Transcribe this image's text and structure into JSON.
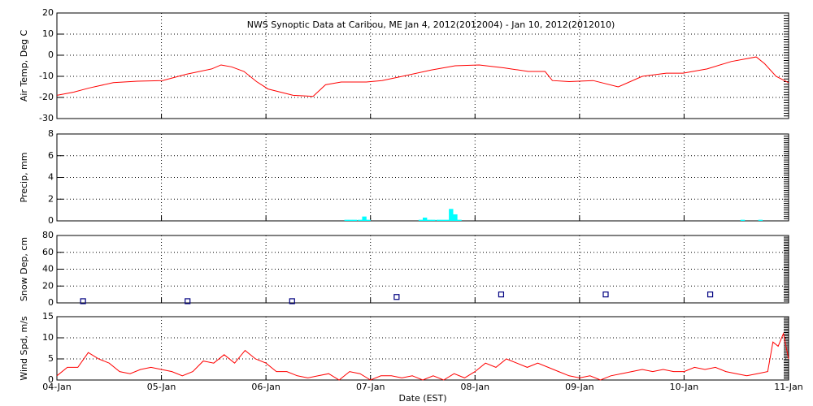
{
  "chart_data": [
    {
      "type": "line",
      "title": "NWS Synoptic Data at Caribou, ME   Jan  4, 2012(2012004) - Jan 10, 2012(2012010)",
      "y_label": "Air Temp, Deg C",
      "color": "#ff0000",
      "grid": true,
      "xlim": [
        0,
        7
      ],
      "xticks": [
        0,
        1,
        2,
        3,
        4,
        5,
        6,
        7
      ],
      "ylim": [
        -30,
        20
      ],
      "yticks": [
        -30,
        -20,
        -10,
        0,
        10,
        20
      ],
      "x": [
        0,
        0.16,
        0.31,
        0.54,
        0.77,
        1.01,
        1.24,
        1.48,
        1.57,
        1.67,
        1.79,
        1.91,
        2.02,
        2.26,
        2.45,
        2.57,
        2.72,
        2.96,
        3.11,
        3.34,
        3.58,
        3.81,
        4.04,
        4.28,
        4.51,
        4.67,
        4.74,
        4.9,
        5.13,
        5.37,
        5.6,
        5.83,
        5.99,
        6.22,
        6.45,
        6.69,
        6.77,
        6.88,
        7.0
      ],
      "values": [
        -19,
        -17.5,
        -15.5,
        -13,
        -12.3,
        -12,
        -9,
        -6.5,
        -4.6,
        -5.5,
        -7.7,
        -12.5,
        -16,
        -19,
        -19.5,
        -14,
        -12.7,
        -12.7,
        -12,
        -9.6,
        -7,
        -5,
        -4.6,
        -6,
        -7.7,
        -7.7,
        -12,
        -12.5,
        -12,
        -15,
        -10,
        -8.5,
        -8.5,
        -6.5,
        -3,
        -0.8,
        -4,
        -10,
        -13
      ]
    },
    {
      "type": "bar",
      "y_label": "Precip, mm",
      "color": "#00ffff",
      "grid": true,
      "xlim": [
        0,
        7
      ],
      "xticks": [
        0,
        1,
        2,
        3,
        4,
        5,
        6,
        7
      ],
      "ylim": [
        0,
        8
      ],
      "yticks": [
        0,
        2,
        4,
        6,
        8
      ],
      "x": [
        2.75,
        2.79,
        2.83,
        2.88,
        2.92,
        2.96,
        3.46,
        3.5,
        3.54,
        3.58,
        3.63,
        3.67,
        3.71,
        3.75,
        3.79,
        3.83,
        6.54,
        6.71
      ],
      "values": [
        0.1,
        0.1,
        0.1,
        0.1,
        0.4,
        0.1,
        0.1,
        0.3,
        0.1,
        0.1,
        0.1,
        0.1,
        0.1,
        1.1,
        0.6,
        0.1,
        0.1,
        0.1
      ]
    },
    {
      "type": "scatter",
      "y_label": "Snow Dep, cm",
      "color": "#000080",
      "grid": true,
      "xlim": [
        0,
        7
      ],
      "xticks": [
        0,
        1,
        2,
        3,
        4,
        5,
        6,
        7
      ],
      "ylim": [
        0,
        80
      ],
      "yticks": [
        0,
        20,
        40,
        60,
        80
      ],
      "x": [
        0.25,
        1.25,
        2.25,
        3.25,
        4.25,
        5.25,
        6.25
      ],
      "values": [
        2,
        2,
        2,
        7,
        10,
        10,
        10
      ]
    },
    {
      "type": "line",
      "y_label": "Wind Spd, m/s",
      "x_label": "Date (EST)",
      "color": "#ff0000",
      "grid": true,
      "xlim": [
        0,
        7
      ],
      "xticks": [
        {
          "value": 0,
          "label": "04-Jan"
        },
        {
          "value": 1,
          "label": "05-Jan"
        },
        {
          "value": 2,
          "label": "06-Jan"
        },
        {
          "value": 3,
          "label": "07-Jan"
        },
        {
          "value": 4,
          "label": "08-Jan"
        },
        {
          "value": 5,
          "label": "09-Jan"
        },
        {
          "value": 6,
          "label": "10-Jan"
        },
        {
          "value": 7,
          "label": "11-Jan"
        }
      ],
      "ylim": [
        0,
        15
      ],
      "yticks": [
        0,
        5,
        10,
        15
      ],
      "x": [
        0,
        0.1,
        0.2,
        0.3,
        0.4,
        0.5,
        0.6,
        0.7,
        0.8,
        0.9,
        1.0,
        1.1,
        1.2,
        1.3,
        1.4,
        1.5,
        1.6,
        1.7,
        1.8,
        1.9,
        2.0,
        2.1,
        2.2,
        2.3,
        2.4,
        2.5,
        2.6,
        2.7,
        2.8,
        2.9,
        3.0,
        3.1,
        3.2,
        3.3,
        3.4,
        3.5,
        3.6,
        3.7,
        3.8,
        3.9,
        4.0,
        4.1,
        4.2,
        4.3,
        4.4,
        4.5,
        4.6,
        4.7,
        4.8,
        4.9,
        5.0,
        5.1,
        5.2,
        5.3,
        5.4,
        5.5,
        5.6,
        5.7,
        5.8,
        5.9,
        6.0,
        6.1,
        6.2,
        6.3,
        6.4,
        6.5,
        6.6,
        6.7,
        6.8,
        6.85,
        6.9,
        6.95,
        7.0
      ],
      "values": [
        1,
        3,
        3,
        6.5,
        5,
        4,
        2,
        1.5,
        2.5,
        3,
        2.5,
        2,
        1,
        2,
        4.5,
        4,
        6,
        4,
        7,
        5,
        4,
        2,
        2,
        1,
        0.5,
        1,
        1.5,
        0,
        2,
        1.5,
        0,
        1,
        1,
        0.5,
        1,
        0,
        1,
        0,
        1.5,
        0.5,
        2,
        4,
        3,
        5,
        4,
        3,
        4,
        3,
        2,
        1,
        0.5,
        1,
        0,
        1,
        1.5,
        2,
        2.5,
        2,
        2.5,
        2,
        2,
        3,
        2.5,
        3,
        2,
        1.5,
        1,
        1.5,
        2,
        9,
        8,
        11,
        5
      ]
    }
  ]
}
